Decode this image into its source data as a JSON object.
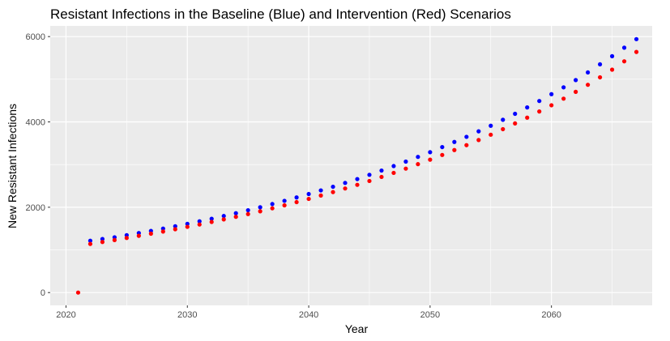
{
  "chart_data": {
    "type": "scatter",
    "title": "Resistant Infections in the Baseline (Blue) and Intervention (Red) Scenarios",
    "xlabel": "Year",
    "ylabel": "New Resistant Infections",
    "xlim": [
      2018.7,
      2068.3
    ],
    "ylim": [
      -300,
      6250
    ],
    "xticks": [
      2020,
      2030,
      2040,
      2050,
      2060
    ],
    "yticks": [
      0,
      2000,
      4000,
      6000
    ],
    "grid": true,
    "legend": "none",
    "x": [
      2021,
      2022,
      2023,
      2024,
      2025,
      2026,
      2027,
      2028,
      2029,
      2030,
      2031,
      2032,
      2033,
      2034,
      2035,
      2036,
      2037,
      2038,
      2039,
      2040,
      2041,
      2042,
      2043,
      2044,
      2045,
      2046,
      2047,
      2048,
      2049,
      2050,
      2051,
      2052,
      2053,
      2054,
      2055,
      2056,
      2057,
      2058,
      2059,
      2060,
      2061,
      2062,
      2063,
      2064,
      2065,
      2066,
      2067
    ],
    "series": [
      {
        "color": "#0000ff",
        "values": [
          null,
          1215,
          1255,
          1295,
          1345,
          1395,
          1445,
          1500,
          1555,
          1610,
          1670,
          1730,
          1795,
          1860,
          1930,
          2000,
          2075,
          2150,
          2230,
          2310,
          2395,
          2480,
          2570,
          2660,
          2760,
          2860,
          2965,
          3070,
          3180,
          3290,
          3410,
          3530,
          3650,
          3780,
          3910,
          4050,
          4190,
          4340,
          4490,
          4650,
          4810,
          4980,
          5160,
          5350,
          5540,
          5740,
          5940
        ]
      },
      {
        "color": "#ff0000",
        "values": [
          0,
          1140,
          1185,
          1230,
          1280,
          1330,
          1380,
          1430,
          1485,
          1540,
          1595,
          1655,
          1715,
          1775,
          1840,
          1905,
          1975,
          2045,
          2120,
          2195,
          2275,
          2355,
          2440,
          2525,
          2615,
          2710,
          2805,
          2905,
          3010,
          3115,
          3225,
          3340,
          3455,
          3575,
          3700,
          3830,
          3965,
          4100,
          4245,
          4390,
          4545,
          4705,
          4870,
          5045,
          5225,
          5420,
          5640
        ]
      }
    ]
  }
}
